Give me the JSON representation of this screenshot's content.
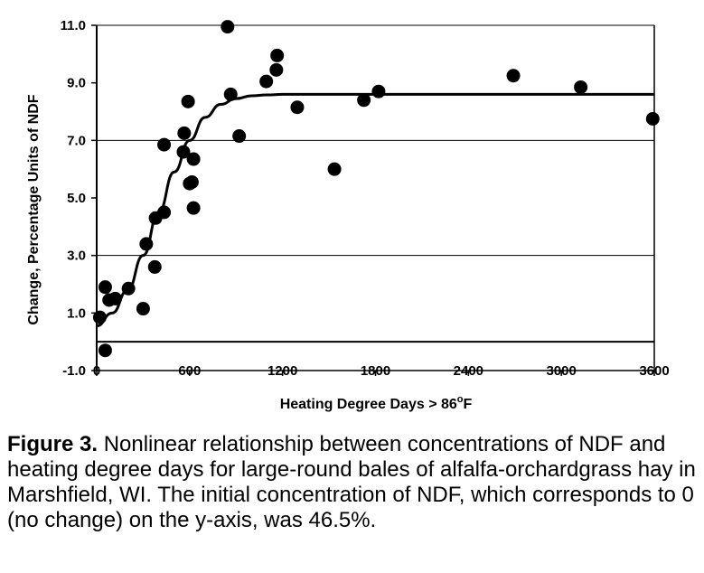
{
  "chart_data": {
    "type": "scatter",
    "xlabel_main": "Heating Degree Days > 86",
    "xlabel_sup": "o",
    "xlabel_tail": "F",
    "ylabel": "Change, Percentage Units of NDF",
    "xlim": [
      0,
      3600
    ],
    "ylim": [
      -1.0,
      11.0
    ],
    "x_ticks": [
      0,
      600,
      1200,
      1800,
      2400,
      3000,
      3600
    ],
    "x_tick_labels": [
      "0",
      "600",
      "1200",
      "1800",
      "2400",
      "3000",
      "3600"
    ],
    "y_ticks": [
      -1.0,
      1.0,
      3.0,
      5.0,
      7.0,
      9.0,
      11.0
    ],
    "y_tick_labels": [
      "-1.0",
      "1.0",
      "3.0",
      "5.0",
      "7.0",
      "9.0",
      "11.0"
    ],
    "gridlines_y": [
      0,
      3.0,
      7.0,
      11.0
    ],
    "points": [
      {
        "x": 20,
        "y": 0.85
      },
      {
        "x": 55,
        "y": 1.9
      },
      {
        "x": 55,
        "y": -0.3
      },
      {
        "x": 80,
        "y": 1.45
      },
      {
        "x": 120,
        "y": 1.5
      },
      {
        "x": 205,
        "y": 1.85
      },
      {
        "x": 300,
        "y": 1.15
      },
      {
        "x": 320,
        "y": 3.4
      },
      {
        "x": 375,
        "y": 2.6
      },
      {
        "x": 380,
        "y": 4.3
      },
      {
        "x": 435,
        "y": 4.5
      },
      {
        "x": 435,
        "y": 6.85
      },
      {
        "x": 560,
        "y": 6.6
      },
      {
        "x": 565,
        "y": 7.25
      },
      {
        "x": 590,
        "y": 8.35
      },
      {
        "x": 600,
        "y": 5.5
      },
      {
        "x": 615,
        "y": 5.55
      },
      {
        "x": 625,
        "y": 6.35
      },
      {
        "x": 625,
        "y": 4.65
      },
      {
        "x": 845,
        "y": 10.95
      },
      {
        "x": 865,
        "y": 8.6
      },
      {
        "x": 920,
        "y": 7.15
      },
      {
        "x": 1095,
        "y": 9.05
      },
      {
        "x": 1160,
        "y": 9.45
      },
      {
        "x": 1165,
        "y": 9.95
      },
      {
        "x": 1295,
        "y": 8.15
      },
      {
        "x": 1535,
        "y": 6.0
      },
      {
        "x": 1725,
        "y": 8.4
      },
      {
        "x": 1820,
        "y": 8.7
      },
      {
        "x": 2690,
        "y": 9.25
      },
      {
        "x": 3125,
        "y": 8.85
      },
      {
        "x": 3590,
        "y": 7.75
      }
    ],
    "fit_curve": {
      "x": [
        0,
        100,
        200,
        300,
        400,
        500,
        600,
        700,
        800,
        900,
        1000,
        1100,
        1200,
        1400,
        1800,
        2400,
        3000,
        3600
      ],
      "y": [
        0.55,
        1.0,
        1.8,
        3.0,
        4.5,
        5.9,
        7.0,
        7.8,
        8.25,
        8.45,
        8.55,
        8.58,
        8.6,
        8.6,
        8.6,
        8.6,
        8.6,
        8.6
      ]
    }
  },
  "caption": {
    "label": "Figure 3.",
    "text": " Nonlinear relationship between concentrations of NDF and heating degree days for large-round bales of alfalfa-orchardgrass hay in Marshfield, WI. The initial concentration of NDF, which corresponds to 0 (no change) on the y-axis, was 46.5%."
  }
}
